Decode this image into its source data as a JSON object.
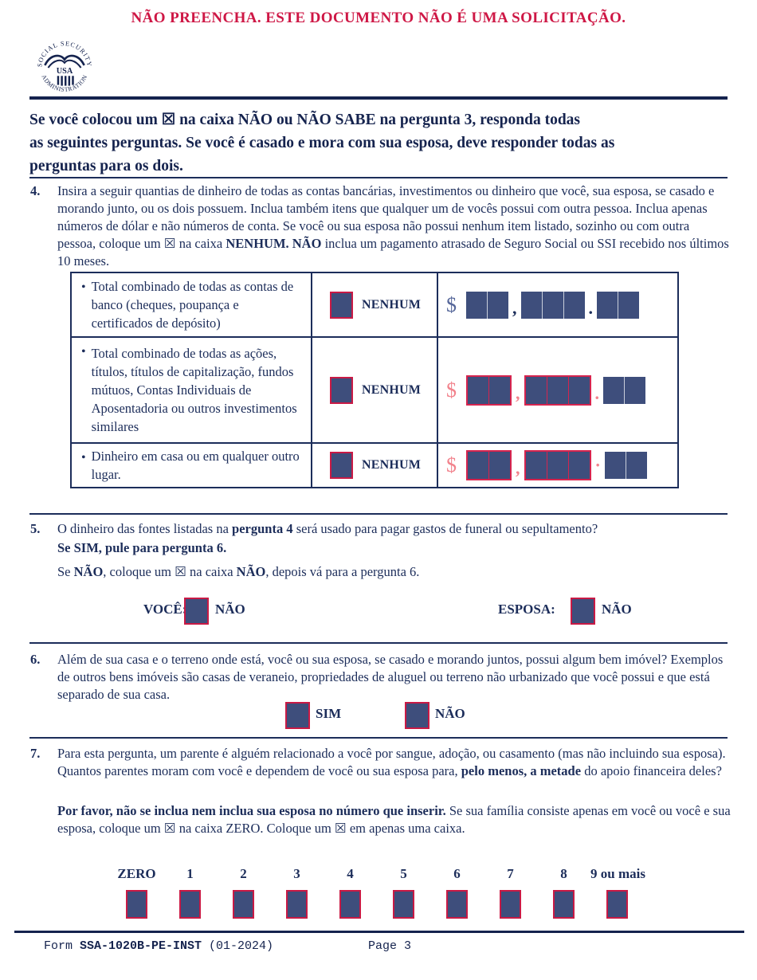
{
  "warning_title": "NÃO PREENCHA. ESTE DOCUMENTO NÃO É UMA SOLICITAÇÃO.",
  "logo": {
    "top_text": "SOCIAL SECURITY",
    "bottom_text": "ADMINISTRATION",
    "center_text": "USA"
  },
  "intro": {
    "line1": "Se você colocou um ☒ na caixa NÃO ou NÃO SABE na pergunta 3, responda todas",
    "line2": "as seguintes perguntas. Se você é casado e mora com sua esposa, deve responder todas as",
    "line3": "perguntas para os dois."
  },
  "q4": {
    "number": "4.",
    "text_before": "Insira a seguir quantias de dinheiro de todas as contas bancárias, investimentos ou dinheiro que você, sua esposa, se casado e morando junto, ou os dois possuem. Inclua também itens que qualquer um de vocês possui com outra pessoa. Inclua apenas números de dólar e não números de conta. Se você ou sua esposa não possui nenhum item listado, sozinho ou com outra pessoa, coloque um ☒ na caixa ",
    "text_bold": "NENHUM. NÃO",
    "text_after": " inclua um pagamento atrasado de Seguro Social ou SSI recebido nos últimos 10 meses.",
    "table": {
      "bullet": "•",
      "rows": [
        {
          "label": "Total combinado de todas as contas de banco (cheques, poupança e certificados de depósito)",
          "checkbox_label": "NENHUM",
          "currency": "$",
          "comma": ",",
          "decimal": "."
        },
        {
          "label": "Total combinado de todas as ações, títulos, títulos de capitalização, fundos mútuos, Contas Individuais de Aposentadoria ou outros investimentos similares",
          "checkbox_label": "NENHUM",
          "currency": "$",
          "comma": ",",
          "decimal": "."
        },
        {
          "label": "Dinheiro em casa ou em qualquer outro lugar.",
          "checkbox_label": "NENHUM",
          "currency": "$",
          "comma": ",",
          "decimal": "·"
        }
      ]
    }
  },
  "q5": {
    "number": "5.",
    "p1_before": "O dinheiro das fontes listadas na ",
    "p1_bold": "pergunta 4",
    "p1_after": " será usado para pagar gastos de funeral ou sepultamento?",
    "p2_bold": "Se SIM, pule para pergunta 6.",
    "p3_a": "Se ",
    "p3_b": "NÃO",
    "p3_c": ", coloque um ☒ na caixa ",
    "p3_d": "NÃO",
    "p3_e": ", depois vá para a pergunta 6.",
    "you_label": "VOCÊ:",
    "you_no": "NÃO",
    "spouse_label": "ESPOSA:",
    "spouse_no": "NÃO"
  },
  "q6": {
    "number": "6.",
    "text": "Além de sua casa e o terreno onde está, você ou sua esposa, se casado e morando juntos, possui algum bem imóvel? Exemplos de outros bens imóveis são casas de veraneio, propriedades de aluguel ou terreno não urbanizado que você possui e que está separado de sua casa.",
    "yes_label": "SIM",
    "no_label": "NÃO"
  },
  "q7": {
    "number": "7.",
    "p1_before": "Para esta pergunta, um parente é alguém relacionado a você por sangue, adoção, ou casamento (mas não incluindo sua esposa). Quantos parentes moram com você e dependem de você ou sua esposa para, ",
    "p1_bold": "pelo menos, a metade",
    "p1_after": " do apoio financeira deles?",
    "p2_bold": "Por favor, não se inclua nem inclua sua esposa no número que inserir.",
    "p2_after": " Se sua família consiste apenas em você ou você e sua esposa, coloque um ☒ na caixa ZERO. Coloque um ☒ em apenas uma caixa.",
    "options": [
      "ZERO",
      "1",
      "2",
      "3",
      "4",
      "5",
      "6",
      "7",
      "8",
      "9 ou mais"
    ]
  },
  "footer": {
    "form_prefix": "Form ",
    "form_number": "SSA-1020B-PE-INST",
    "form_suffix": " (01-2024)",
    "page_label": "Page 3"
  },
  "colors": {
    "navy_text": "#1c2d5a",
    "dark_navy": "#15234e",
    "box_fill": "#3e4e7c",
    "crimson_border": "#c91a45",
    "warning_red": "#ce1745",
    "salmon": "#f2828c"
  }
}
